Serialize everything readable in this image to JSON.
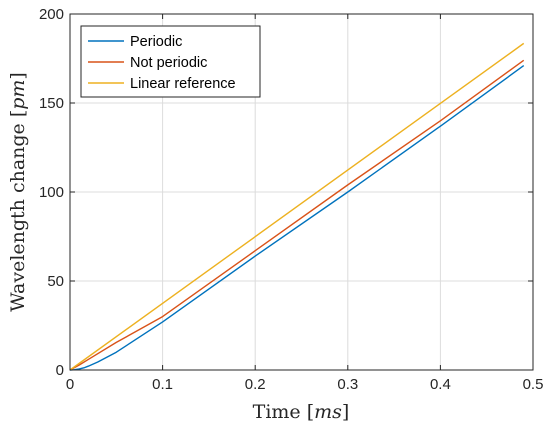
{
  "chart_data": {
    "type": "line",
    "title": "",
    "xlabel": "Time",
    "xlabel_unit": "ms",
    "ylabel": "Wavelength change",
    "ylabel_unit": "pm",
    "xlim": [
      0,
      0.5
    ],
    "ylim": [
      0,
      200
    ],
    "xticks": [
      "0",
      "0.1",
      "0.2",
      "0.3",
      "0.4",
      "0.5"
    ],
    "yticks": [
      "0",
      "50",
      "100",
      "150",
      "200"
    ],
    "grid": true,
    "legend_position": "top-left",
    "series": [
      {
        "name": "Periodic",
        "color": "#0072BD",
        "x": [
          0,
          0.005,
          0.01,
          0.015,
          0.02,
          0.03,
          0.05,
          0.1,
          0.2,
          0.3,
          0.4,
          0.49
        ],
        "y": [
          0,
          0.2,
          0.6,
          1.2,
          2.2,
          4.5,
          10,
          27,
          64,
          100,
          137,
          171
        ]
      },
      {
        "name": "Not periodic",
        "color": "#D95319",
        "x": [
          0,
          0.01,
          0.02,
          0.05,
          0.1,
          0.2,
          0.3,
          0.4,
          0.49
        ],
        "y": [
          0,
          2.8,
          6,
          15.5,
          30,
          67,
          104,
          140,
          174
        ]
      },
      {
        "name": "Linear reference",
        "color": "#EDB120",
        "x": [
          0,
          0.49
        ],
        "y": [
          0,
          183.5
        ]
      }
    ]
  }
}
